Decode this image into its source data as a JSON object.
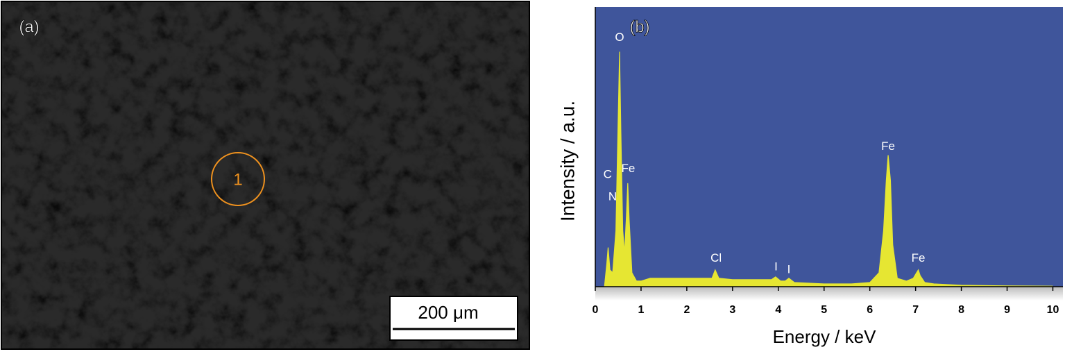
{
  "panel_a": {
    "label": "(a)",
    "marker": "1",
    "scale_bar": "200 μm"
  },
  "chart_data": {
    "type": "area",
    "panel_label": "(b)",
    "xlabel": "Energy / keV",
    "ylabel": "Intensity / a.u.",
    "xlim": [
      0,
      10.22
    ],
    "ylim": [
      0,
      100
    ],
    "xticks": [
      0,
      1,
      2,
      3,
      4,
      5,
      6,
      7,
      8,
      9,
      10
    ],
    "color": "#e6e632",
    "background": "#3f559b",
    "x": [
      0.2,
      0.25,
      0.28,
      0.32,
      0.38,
      0.45,
      0.5,
      0.53,
      0.56,
      0.6,
      0.64,
      0.68,
      0.71,
      0.74,
      0.8,
      0.9,
      1.0,
      1.2,
      1.5,
      2.0,
      2.4,
      2.55,
      2.62,
      2.7,
      3.0,
      3.5,
      3.85,
      3.94,
      4.05,
      4.15,
      4.23,
      4.35,
      5.0,
      5.6,
      6.0,
      6.2,
      6.3,
      6.36,
      6.4,
      6.45,
      6.5,
      6.6,
      6.8,
      6.95,
      7.02,
      7.06,
      7.1,
      7.2,
      7.4,
      8.0,
      9.0,
      10.0
    ],
    "values": [
      0,
      8,
      14,
      6,
      5,
      20,
      60,
      84,
      55,
      20,
      12,
      25,
      37,
      24,
      5,
      2,
      2,
      3,
      3,
      3,
      3,
      3,
      6,
      3,
      2.5,
      2.5,
      2.5,
      3.5,
      2,
      2,
      3,
      1.5,
      1,
      1,
      1.5,
      5,
      20,
      38,
      47,
      38,
      15,
      3,
      2,
      3,
      5,
      6,
      4,
      1.5,
      1,
      0.5,
      0.3,
      0.2
    ],
    "annotations": [
      {
        "text": "O",
        "x": 0.53,
        "y": 89
      },
      {
        "text": "C",
        "x": 0.27,
        "y": 40
      },
      {
        "text": "N",
        "x": 0.38,
        "y": 32
      },
      {
        "text": "Fe",
        "x": 0.72,
        "y": 42
      },
      {
        "text": "Cl",
        "x": 2.64,
        "y": 10
      },
      {
        "text": "I",
        "x": 3.95,
        "y": 7
      },
      {
        "text": "I",
        "x": 4.23,
        "y": 6
      },
      {
        "text": "Fe",
        "x": 6.4,
        "y": 50
      },
      {
        "text": "Fe",
        "x": 7.06,
        "y": 10
      }
    ]
  }
}
